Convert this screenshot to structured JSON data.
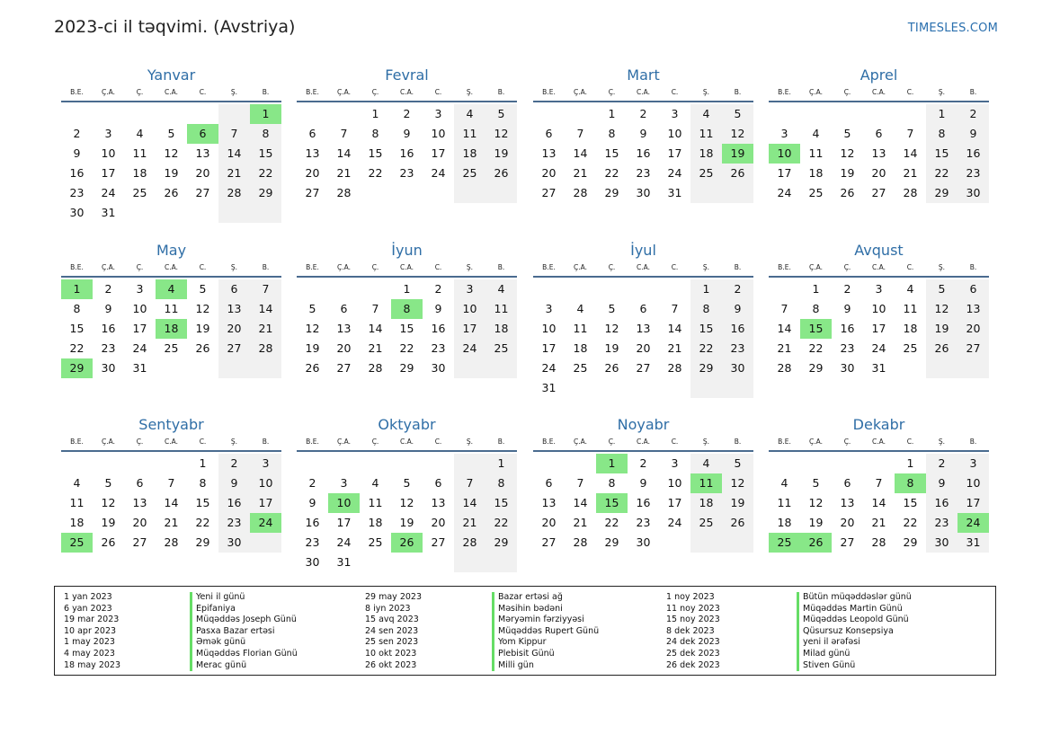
{
  "page": {
    "title": "2023-ci il təqvimi. (Avstriya)",
    "brand": "TIMESLES.COM"
  },
  "weekdays": [
    "B.E.",
    "Ç.A.",
    "Ç.",
    "C.A.",
    "C.",
    "Ş.",
    "B."
  ],
  "months": [
    {
      "name": "Yanvar",
      "offset": 6,
      "days": 31,
      "holidays": [
        1,
        6
      ]
    },
    {
      "name": "Fevral",
      "offset": 2,
      "days": 28,
      "holidays": []
    },
    {
      "name": "Mart",
      "offset": 2,
      "days": 31,
      "holidays": [
        19
      ]
    },
    {
      "name": "Aprel",
      "offset": 5,
      "days": 30,
      "holidays": [
        10
      ]
    },
    {
      "name": "May",
      "offset": 0,
      "days": 31,
      "holidays": [
        1,
        4,
        18,
        29
      ]
    },
    {
      "name": "İyun",
      "offset": 3,
      "days": 30,
      "holidays": [
        8
      ]
    },
    {
      "name": "İyul",
      "offset": 5,
      "days": 31,
      "holidays": []
    },
    {
      "name": "Avqust",
      "offset": 1,
      "days": 31,
      "holidays": [
        15
      ]
    },
    {
      "name": "Sentyabr",
      "offset": 4,
      "days": 30,
      "holidays": [
        24,
        25
      ]
    },
    {
      "name": "Oktyabr",
      "offset": 6,
      "days": 31,
      "holidays": [
        10,
        26
      ]
    },
    {
      "name": "Noyabr",
      "offset": 2,
      "days": 30,
      "holidays": [
        1,
        11,
        15
      ]
    },
    {
      "name": "Dekabr",
      "offset": 4,
      "days": 31,
      "holidays": [
        8,
        24,
        25,
        26
      ]
    }
  ],
  "legend": [
    [
      {
        "date": "1 yan 2023",
        "name": "Yeni il günü"
      },
      {
        "date": "6 yan 2023",
        "name": "Epifaniya"
      },
      {
        "date": "19 mar 2023",
        "name": "Müqəddəs Joseph Günü"
      },
      {
        "date": "10 apr 2023",
        "name": "Pasxa Bazar ertəsi"
      },
      {
        "date": "1 may 2023",
        "name": "Əmək günü"
      },
      {
        "date": "4 may 2023",
        "name": "Müqəddəs Florian Günü"
      },
      {
        "date": "18 may 2023",
        "name": "Merac günü"
      }
    ],
    [
      {
        "date": "29 may 2023",
        "name": "Bazar ertəsi ağ"
      },
      {
        "date": "8 iyn 2023",
        "name": "Məsihin bədəni"
      },
      {
        "date": "15 avq 2023",
        "name": "Məryəmin fərziyyəsi"
      },
      {
        "date": "24 sen 2023",
        "name": "Müqəddəs Rupert Günü"
      },
      {
        "date": "25 sen 2023",
        "name": "Yom Kippur"
      },
      {
        "date": "10 okt 2023",
        "name": "Plebisit Günü"
      },
      {
        "date": "26 okt 2023",
        "name": "Milli gün"
      }
    ],
    [
      {
        "date": "1 noy 2023",
        "name": "Bütün müqəddəslər günü"
      },
      {
        "date": "11 noy 2023",
        "name": "Müqəddəs Martin Günü"
      },
      {
        "date": "15 noy 2023",
        "name": "Müqəddəs Leopold Günü"
      },
      {
        "date": "8 dek 2023",
        "name": "Qüsursuz Konsepsiya"
      },
      {
        "date": "24 dek 2023",
        "name": "yeni il ərəfəsi"
      },
      {
        "date": "25 dek 2023",
        "name": "Milad günü"
      },
      {
        "date": "26 dek 2023",
        "name": "Stiven Günü"
      }
    ]
  ]
}
